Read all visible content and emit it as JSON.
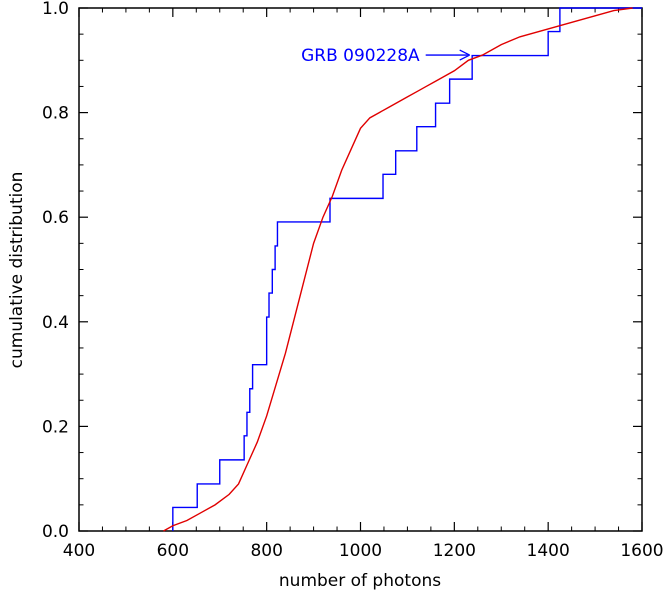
{
  "chart_data": {
    "type": "line",
    "title": "",
    "xlabel": "number of photons",
    "ylabel": "cumulative distribution",
    "xlim": [
      400,
      1600
    ],
    "ylim": [
      0.0,
      1.0
    ],
    "x_ticks": [
      400,
      600,
      800,
      1000,
      1200,
      1400,
      1600
    ],
    "x_tick_labels": [
      "400",
      "600",
      "800",
      "1000",
      "1200",
      "1400",
      "1600"
    ],
    "y_ticks": [
      0.0,
      0.2,
      0.4,
      0.6,
      0.8,
      1.0
    ],
    "y_tick_labels": [
      "0.0",
      "0.2",
      "0.4",
      "0.6",
      "0.8",
      "1.0"
    ],
    "grid": false,
    "annotations": [
      {
        "text": "GRB 090228A",
        "x": 1237,
        "y": 0.91,
        "color": "#0000ff"
      }
    ],
    "series": [
      {
        "style": "step",
        "color": "#0000ff",
        "x": [
          600,
          652,
          700,
          752,
          758,
          764,
          770,
          800,
          805,
          812,
          818,
          823,
          935,
          1048,
          1075,
          1120,
          1160,
          1190,
          1238,
          1400,
          1425,
          1600
        ],
        "y": [
          0.045,
          0.09,
          0.136,
          0.182,
          0.227,
          0.272,
          0.318,
          0.409,
          0.455,
          0.5,
          0.545,
          0.591,
          0.636,
          0.682,
          0.727,
          0.773,
          0.818,
          0.864,
          0.909,
          0.955,
          1.0,
          1.0
        ]
      },
      {
        "style": "line",
        "color": "#e00000",
        "x": [
          580,
          600,
          630,
          660,
          690,
          720,
          740,
          760,
          780,
          800,
          820,
          840,
          860,
          880,
          900,
          920,
          940,
          960,
          980,
          1000,
          1020,
          1040,
          1060,
          1080,
          1100,
          1120,
          1140,
          1160,
          1180,
          1200,
          1230,
          1260,
          1300,
          1340,
          1380,
          1420,
          1460,
          1500,
          1540,
          1580
        ],
        "y": [
          0.0,
          0.01,
          0.02,
          0.035,
          0.05,
          0.07,
          0.09,
          0.13,
          0.17,
          0.22,
          0.28,
          0.34,
          0.41,
          0.48,
          0.55,
          0.6,
          0.64,
          0.69,
          0.73,
          0.77,
          0.79,
          0.8,
          0.81,
          0.82,
          0.83,
          0.84,
          0.85,
          0.86,
          0.87,
          0.88,
          0.9,
          0.91,
          0.93,
          0.945,
          0.955,
          0.965,
          0.975,
          0.985,
          0.995,
          1.0
        ]
      }
    ]
  }
}
